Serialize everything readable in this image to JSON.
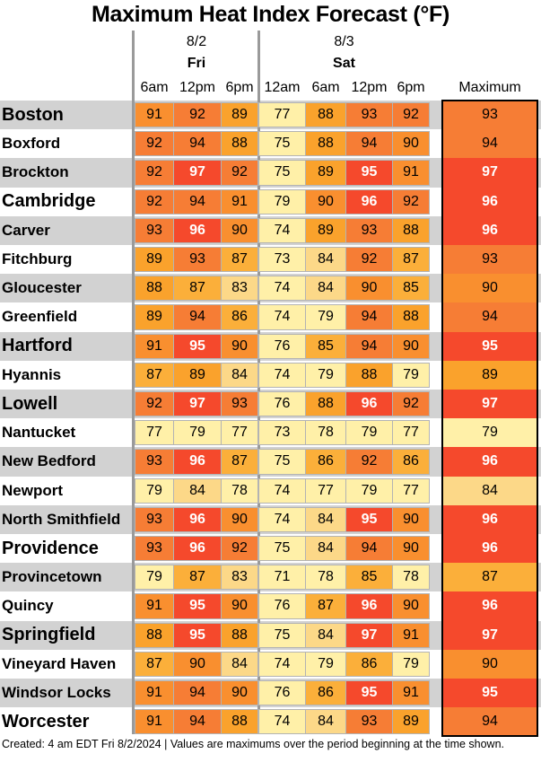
{
  "chart_data": {
    "type": "table",
    "title": "Maximum Heat Index Forecast (°F)",
    "days": [
      {
        "date": "8/2",
        "day": "Fri",
        "times": [
          "6am",
          "12pm",
          "6pm"
        ]
      },
      {
        "date": "8/3",
        "day": "Sat",
        "times": [
          "12am",
          "6am",
          "12pm",
          "6pm"
        ]
      }
    ],
    "max_header": "Maximum",
    "footer": "Created: 4 am EDT Fri 8/2/2024  |  Values are maximums over the period beginning at the time shown.",
    "rows": [
      {
        "name": "Boston",
        "values": [
          91,
          92,
          89,
          77,
          88,
          93,
          92
        ],
        "max": 93
      },
      {
        "name": "Boxford",
        "values": [
          92,
          94,
          88,
          75,
          88,
          94,
          90
        ],
        "max": 94
      },
      {
        "name": "Brockton",
        "values": [
          92,
          97,
          92,
          75,
          89,
          95,
          91
        ],
        "max": 97
      },
      {
        "name": "Cambridge",
        "values": [
          92,
          94,
          91,
          79,
          90,
          96,
          92
        ],
        "max": 96
      },
      {
        "name": "Carver",
        "values": [
          93,
          96,
          90,
          74,
          89,
          93,
          88
        ],
        "max": 96
      },
      {
        "name": "Fitchburg",
        "values": [
          89,
          93,
          87,
          73,
          84,
          92,
          87
        ],
        "max": 93
      },
      {
        "name": "Gloucester",
        "values": [
          88,
          87,
          83,
          74,
          84,
          90,
          85
        ],
        "max": 90
      },
      {
        "name": "Greenfield",
        "values": [
          89,
          94,
          86,
          74,
          79,
          94,
          88
        ],
        "max": 94
      },
      {
        "name": "Hartford",
        "values": [
          91,
          95,
          90,
          76,
          85,
          94,
          90
        ],
        "max": 95
      },
      {
        "name": "Hyannis",
        "values": [
          87,
          89,
          84,
          74,
          79,
          88,
          79
        ],
        "max": 89
      },
      {
        "name": "Lowell",
        "values": [
          92,
          97,
          93,
          76,
          88,
          96,
          92
        ],
        "max": 97
      },
      {
        "name": "Nantucket",
        "values": [
          77,
          79,
          77,
          73,
          78,
          79,
          77
        ],
        "max": 79
      },
      {
        "name": "New Bedford",
        "values": [
          93,
          96,
          87,
          75,
          86,
          92,
          86
        ],
        "max": 96
      },
      {
        "name": "Newport",
        "values": [
          79,
          84,
          78,
          74,
          77,
          79,
          77
        ],
        "max": 84
      },
      {
        "name": "North Smithfield",
        "values": [
          93,
          96,
          90,
          74,
          84,
          95,
          90
        ],
        "max": 96
      },
      {
        "name": "Providence",
        "values": [
          93,
          96,
          92,
          75,
          84,
          94,
          90
        ],
        "max": 96
      },
      {
        "name": "Provincetown",
        "values": [
          79,
          87,
          83,
          71,
          78,
          85,
          78
        ],
        "max": 87
      },
      {
        "name": "Quincy",
        "values": [
          91,
          95,
          90,
          76,
          87,
          96,
          90
        ],
        "max": 96
      },
      {
        "name": "Springfield",
        "values": [
          88,
          95,
          88,
          75,
          84,
          97,
          91
        ],
        "max": 97
      },
      {
        "name": "Vineyard Haven",
        "values": [
          87,
          90,
          84,
          74,
          79,
          86,
          79
        ],
        "max": 90
      },
      {
        "name": "Windsor Locks",
        "values": [
          91,
          94,
          90,
          76,
          86,
          95,
          91
        ],
        "max": 95
      },
      {
        "name": "Worcester",
        "values": [
          91,
          94,
          88,
          74,
          84,
          93,
          89
        ],
        "max": 94
      }
    ],
    "color_scale": [
      {
        "max": 79,
        "color": "#fff0a8"
      },
      {
        "max": 84,
        "color": "#fcd888"
      },
      {
        "max": 87,
        "color": "#fbaf3a"
      },
      {
        "max": 89,
        "color": "#faa22c"
      },
      {
        "max": 91,
        "color": "#f98f2f"
      },
      {
        "max": 94,
        "color": "#f67d35"
      },
      {
        "max": 200,
        "color": "#f5492c"
      }
    ],
    "white_text_threshold": 95
  }
}
